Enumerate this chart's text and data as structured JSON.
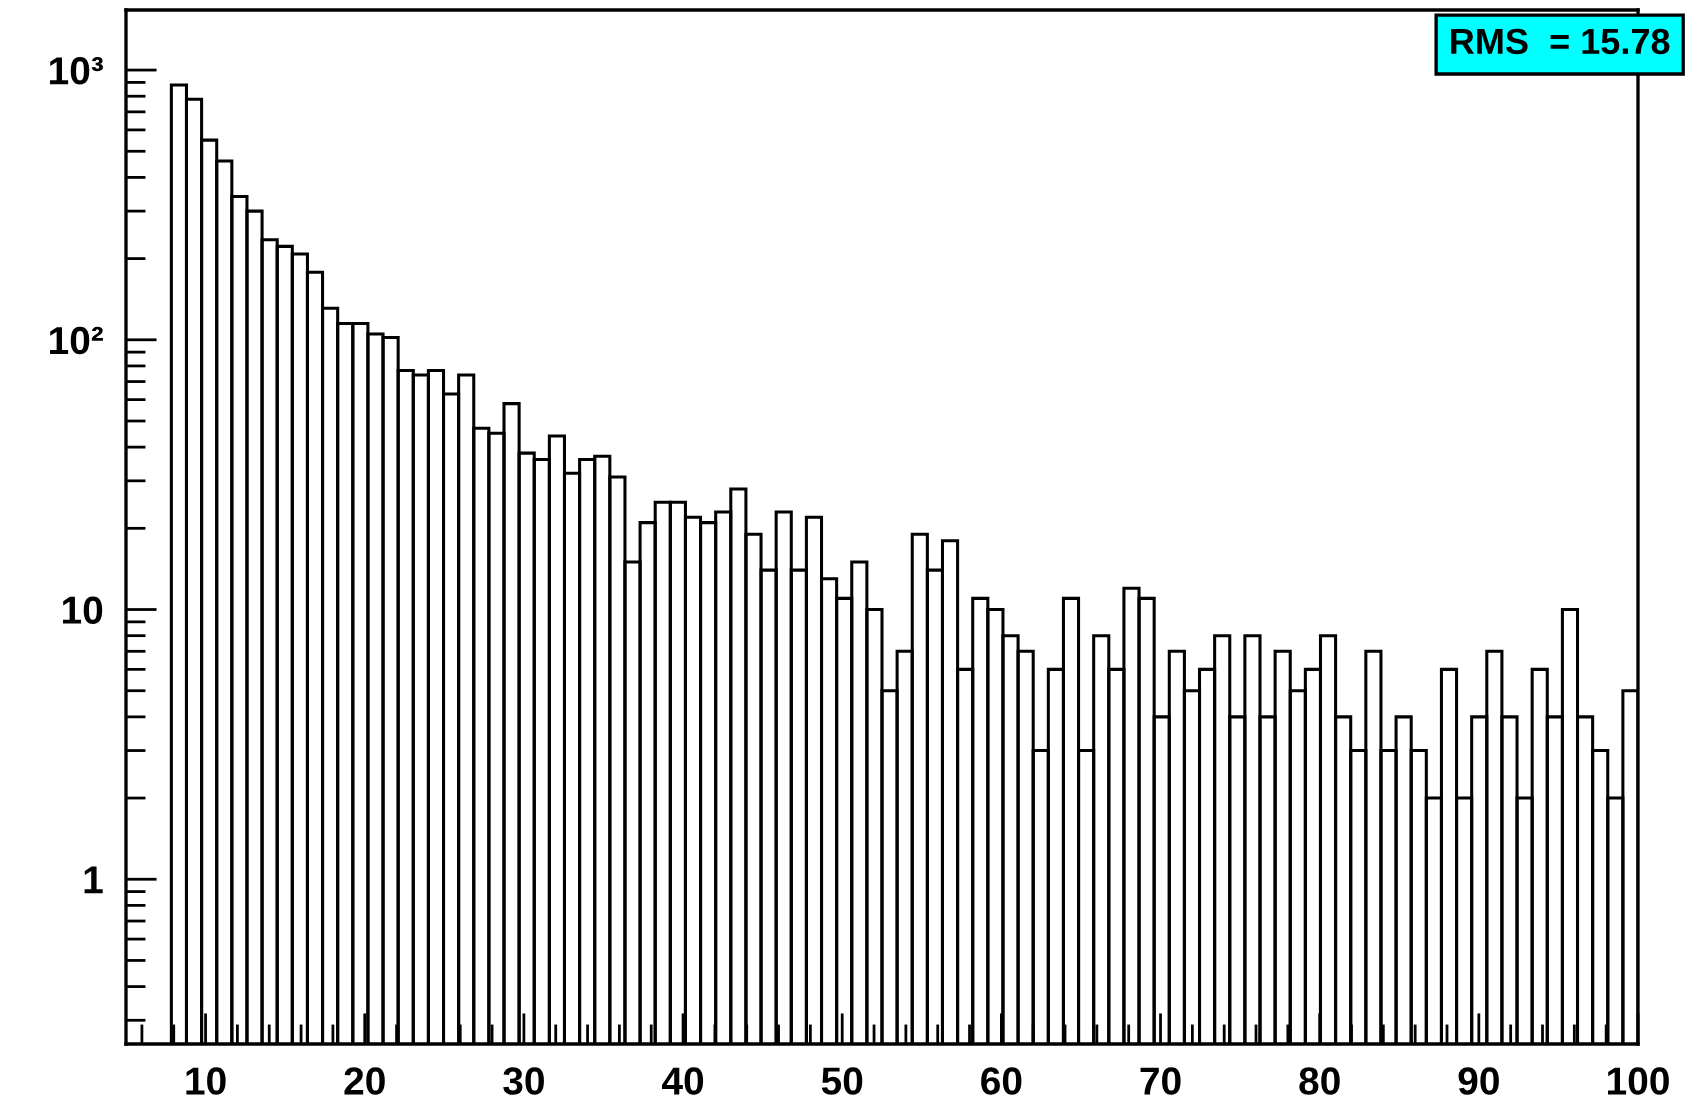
{
  "chart_data": {
    "type": "histogram",
    "bins": [
      7.85,
      8.8,
      9.75,
      10.7,
      11.65,
      12.6,
      13.55,
      14.5,
      15.45,
      16.4,
      17.35,
      18.3,
      19.25,
      20.2,
      21.15,
      22.1,
      23.05,
      24,
      24.95,
      25.9,
      26.85,
      27.8,
      28.75,
      29.7,
      30.65,
      31.6,
      32.55,
      33.5,
      34.45,
      35.4,
      36.35,
      37.3,
      38.25,
      39.2,
      40.15,
      41.1,
      42.05,
      43,
      43.95,
      44.9,
      45.85,
      46.8,
      47.75,
      48.7,
      49.65,
      50.6,
      51.55,
      52.5,
      53.45,
      54.4,
      55.35,
      56.3,
      57.25,
      58.2,
      59.15,
      60.1,
      61.05,
      62,
      62.95,
      63.9,
      64.85,
      65.8,
      66.75,
      67.7,
      68.65,
      69.6,
      70.55,
      71.5,
      72.45,
      73.4,
      74.35,
      75.3,
      76.25,
      77.2,
      78.15,
      79.1,
      80.05,
      81,
      81.95,
      82.9,
      83.85,
      84.8,
      85.75,
      86.7,
      87.65,
      88.6,
      89.55,
      90.5,
      91.45,
      92.4,
      93.35,
      94.3,
      95.25,
      96.2,
      97.15,
      98.1,
      99.05,
      100
    ],
    "values": [
      880,
      780,
      550,
      460,
      340,
      300,
      235,
      222,
      208,
      178,
      131,
      115,
      115,
      105,
      102,
      77,
      74,
      77,
      63,
      74,
      47,
      45,
      58,
      38,
      36,
      44,
      32,
      36,
      37,
      31,
      15,
      21,
      25,
      25,
      22,
      21,
      23,
      28,
      19,
      14,
      23,
      14,
      22,
      13,
      11,
      15,
      10,
      5,
      7,
      19,
      14,
      18,
      6,
      11,
      10,
      8,
      7,
      3,
      6,
      11,
      3,
      8,
      6,
      12,
      11,
      4,
      7,
      5,
      6,
      8,
      4,
      8,
      4,
      7,
      5,
      6,
      8,
      4,
      3,
      7,
      3,
      4,
      3,
      2,
      6,
      2,
      4,
      7,
      4,
      2,
      6,
      4,
      10,
      4,
      3,
      2,
      5
    ],
    "color": "#000000",
    "log": "y",
    "xlim": [
      5,
      100
    ],
    "xticks": [
      10,
      20,
      30,
      40,
      50,
      60,
      70,
      80,
      90,
      100
    ],
    "ylim": [
      0.245,
      1670
    ],
    "yticks": [
      1,
      10,
      {
        "value": 100,
        "label": "10²"
      },
      {
        "value": 1000,
        "label": "10³"
      }
    ],
    "grid": false,
    "legend": false,
    "annotations": [
      "RMS  = 15.78"
    ]
  }
}
